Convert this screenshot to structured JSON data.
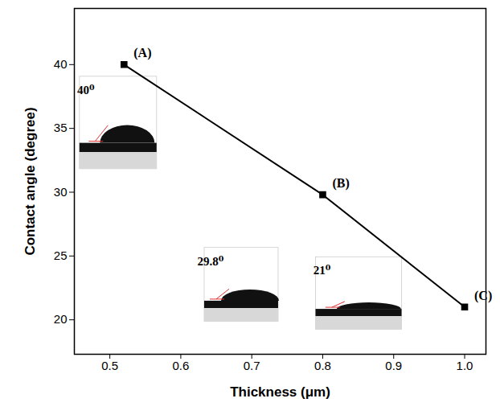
{
  "chart_data": {
    "type": "line",
    "x_label": "Thickness (μm)",
    "y_label": "Contact angle (degree)",
    "x": [
      0.52,
      0.8,
      1.0
    ],
    "values": [
      40,
      29.8,
      21
    ],
    "point_labels": [
      "(A)",
      "(B)",
      "(C)"
    ],
    "inset_labels": [
      "40⁰",
      "29.8⁰",
      "21⁰"
    ],
    "color": "#000000",
    "marker": "square",
    "line_style": "solid",
    "xlim": [
      0.45,
      1.03
    ],
    "ylim": [
      17.3,
      44.4
    ],
    "xticks": [
      0.5,
      0.6,
      0.7,
      0.8,
      0.9,
      {
        "value": 1,
        "label": "1.0"
      }
    ],
    "yticks": [
      20,
      25,
      30,
      35,
      40
    ],
    "grid": false
  }
}
